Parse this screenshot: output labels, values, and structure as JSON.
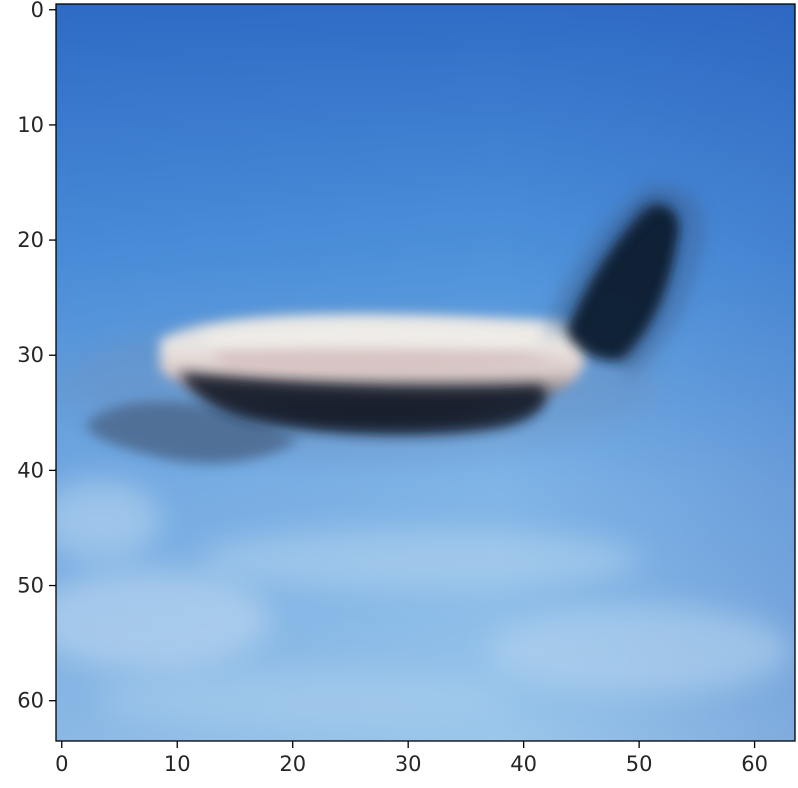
{
  "image": {
    "kind": "pixelated-photo",
    "subject": "airplane",
    "resolution": [
      64,
      64
    ],
    "colors": {
      "sky_top": "#2f6cc6",
      "sky_mid": "#4f93db",
      "sky_bottom": "#9cc7eb",
      "fuselage_light": "#e9e4df",
      "fuselage_pink": "#d9c6c4",
      "shadow_dark": "#141c2a",
      "wing_blue": "#5f7fa6",
      "tail_dark": "#0f1b2e"
    }
  },
  "axes": {
    "x": {
      "ticks": [
        "0",
        "10",
        "20",
        "30",
        "40",
        "50",
        "60"
      ],
      "tick_values": [
        0,
        10,
        20,
        30,
        40,
        50,
        60
      ],
      "range": [
        -0.5,
        63.5
      ]
    },
    "y": {
      "ticks": [
        "0",
        "10",
        "20",
        "30",
        "40",
        "50",
        "60"
      ],
      "tick_values": [
        0,
        10,
        20,
        30,
        40,
        50,
        60
      ],
      "range": [
        -0.5,
        63.5
      ],
      "inverted": true
    },
    "frame_color": "#000000",
    "tick_color": "#000000",
    "grid": false
  }
}
